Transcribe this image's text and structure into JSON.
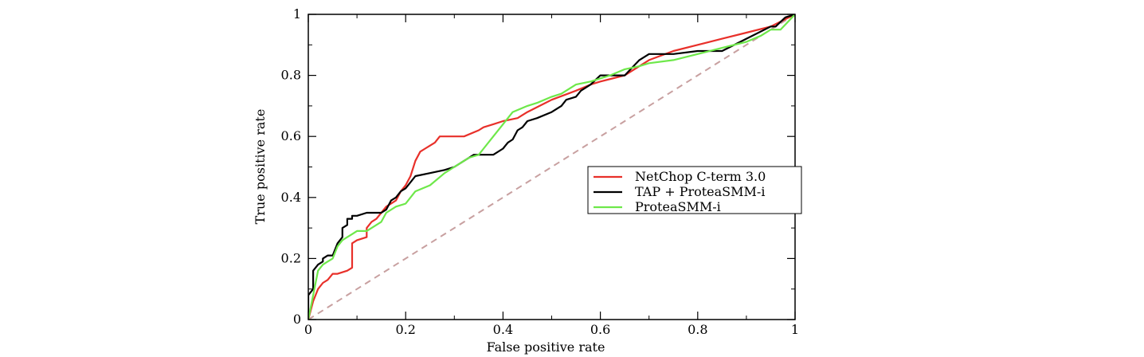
{
  "chart_data": {
    "type": "line",
    "title": "",
    "xlabel": "False positive rate",
    "ylabel": "True positive rate",
    "xlim": [
      0,
      1
    ],
    "ylim": [
      0,
      1
    ],
    "x_ticks": [
      "0",
      "0.2",
      "0.4",
      "0.6",
      "0.8",
      "1"
    ],
    "y_ticks": [
      "0",
      "0.2",
      "0.4",
      "0.6",
      "0.8",
      "1"
    ],
    "grid": false,
    "legend_position": "right-middle",
    "diagonal": {
      "x": [
        0,
        1
      ],
      "y": [
        0,
        1
      ],
      "style": "dashed",
      "color": "#c8a0a0"
    },
    "series": [
      {
        "name": "NetChop C-term 3.0",
        "color": "#e8302a",
        "x": [
          0,
          0.01,
          0.02,
          0.03,
          0.04,
          0.05,
          0.06,
          0.08,
          0.09,
          0.09,
          0.1,
          0.1,
          0.12,
          0.12,
          0.13,
          0.14,
          0.15,
          0.16,
          0.18,
          0.19,
          0.2,
          0.21,
          0.22,
          0.23,
          0.24,
          0.25,
          0.26,
          0.27,
          0.28,
          0.3,
          0.32,
          0.35,
          0.36,
          0.38,
          0.4,
          0.43,
          0.45,
          0.5,
          0.55,
          0.58,
          0.6,
          0.65,
          0.7,
          0.75,
          0.8,
          0.85,
          0.9,
          0.95,
          1.0
        ],
        "y": [
          0,
          0.06,
          0.1,
          0.12,
          0.13,
          0.15,
          0.15,
          0.16,
          0.17,
          0.25,
          0.26,
          0.26,
          0.27,
          0.3,
          0.32,
          0.33,
          0.35,
          0.37,
          0.39,
          0.42,
          0.44,
          0.47,
          0.52,
          0.55,
          0.56,
          0.57,
          0.58,
          0.6,
          0.6,
          0.6,
          0.6,
          0.62,
          0.63,
          0.64,
          0.65,
          0.66,
          0.68,
          0.72,
          0.75,
          0.77,
          0.78,
          0.8,
          0.85,
          0.88,
          0.9,
          0.92,
          0.94,
          0.96,
          1.0
        ]
      },
      {
        "name": "TAP + ProteaSMM-i",
        "color": "#000000",
        "x": [
          0,
          0.0,
          0.01,
          0.01,
          0.02,
          0.03,
          0.03,
          0.04,
          0.05,
          0.06,
          0.07,
          0.07,
          0.08,
          0.08,
          0.09,
          0.09,
          0.1,
          0.12,
          0.15,
          0.16,
          0.17,
          0.18,
          0.19,
          0.2,
          0.21,
          0.22,
          0.25,
          0.28,
          0.3,
          0.32,
          0.34,
          0.36,
          0.38,
          0.4,
          0.41,
          0.42,
          0.43,
          0.44,
          0.45,
          0.47,
          0.5,
          0.52,
          0.53,
          0.55,
          0.56,
          0.58,
          0.6,
          0.63,
          0.65,
          0.68,
          0.7,
          0.75,
          0.8,
          0.84,
          0.85,
          0.9,
          0.95,
          0.96,
          0.98,
          1.0
        ],
        "y": [
          0,
          0.08,
          0.1,
          0.16,
          0.18,
          0.19,
          0.2,
          0.21,
          0.21,
          0.25,
          0.27,
          0.3,
          0.31,
          0.33,
          0.33,
          0.34,
          0.34,
          0.35,
          0.35,
          0.36,
          0.39,
          0.4,
          0.42,
          0.43,
          0.45,
          0.47,
          0.48,
          0.49,
          0.5,
          0.52,
          0.54,
          0.54,
          0.54,
          0.56,
          0.58,
          0.59,
          0.62,
          0.63,
          0.65,
          0.66,
          0.68,
          0.7,
          0.72,
          0.73,
          0.75,
          0.77,
          0.8,
          0.8,
          0.8,
          0.85,
          0.87,
          0.87,
          0.88,
          0.88,
          0.88,
          0.92,
          0.96,
          0.96,
          0.99,
          1.0
        ]
      },
      {
        "name": "ProteaSMM-i",
        "color": "#6ee84a",
        "x": [
          0,
          0.01,
          0.02,
          0.03,
          0.04,
          0.05,
          0.06,
          0.07,
          0.08,
          0.09,
          0.1,
          0.11,
          0.12,
          0.15,
          0.16,
          0.18,
          0.2,
          0.22,
          0.25,
          0.28,
          0.3,
          0.32,
          0.33,
          0.35,
          0.36,
          0.38,
          0.4,
          0.42,
          0.45,
          0.47,
          0.5,
          0.52,
          0.55,
          0.58,
          0.6,
          0.62,
          0.65,
          0.68,
          0.7,
          0.75,
          0.8,
          0.85,
          0.9,
          0.93,
          0.95,
          0.97,
          1.0
        ],
        "y": [
          0,
          0.08,
          0.16,
          0.18,
          0.19,
          0.2,
          0.24,
          0.26,
          0.27,
          0.28,
          0.29,
          0.29,
          0.29,
          0.32,
          0.35,
          0.37,
          0.38,
          0.42,
          0.44,
          0.48,
          0.5,
          0.52,
          0.53,
          0.54,
          0.56,
          0.6,
          0.64,
          0.68,
          0.7,
          0.71,
          0.73,
          0.74,
          0.77,
          0.78,
          0.79,
          0.8,
          0.82,
          0.83,
          0.84,
          0.85,
          0.87,
          0.89,
          0.91,
          0.93,
          0.95,
          0.95,
          1.0
        ]
      }
    ]
  }
}
